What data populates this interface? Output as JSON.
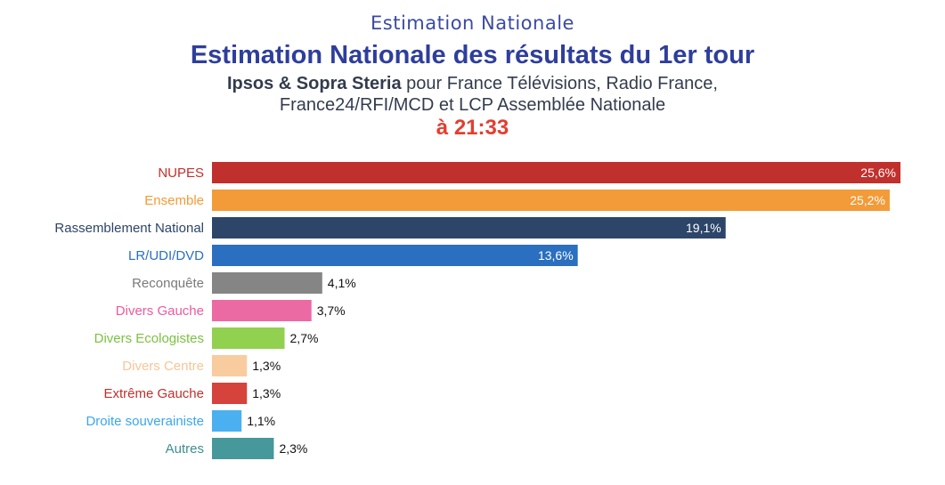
{
  "header": {
    "top_label": "Estimation Nationale",
    "title": "Estimation Nationale des résultats du 1er tour",
    "subtitle_strong": "Ipsos & Sopra Steria",
    "subtitle_rest_1": " pour France Télévisions, Radio France,",
    "subtitle_line_2": "France24/RFI/MCD et LCP Assemblée Nationale",
    "time": "à 21:33"
  },
  "chart_data": {
    "type": "bar",
    "orientation": "horizontal",
    "title": "Estimation Nationale des résultats du 1er tour",
    "xlabel": "",
    "ylabel": "",
    "xlim": [
      0,
      25.6
    ],
    "grid": false,
    "legend": "none",
    "categories": [
      "NUPES",
      "Ensemble",
      "Rassemblement National",
      "LR/UDI/DVD",
      "Reconquête",
      "Divers Gauche",
      "Divers Ecologistes",
      "Divers Centre",
      "Extrême Gauche",
      "Droite souverainiste",
      "Autres"
    ],
    "values": [
      25.6,
      25.2,
      19.1,
      13.6,
      4.1,
      3.7,
      2.7,
      1.3,
      1.3,
      1.1,
      2.3
    ],
    "value_labels": [
      "25,6%",
      "25,2%",
      "19,1%",
      "13,6%",
      "4,1%",
      "3,7%",
      "2,7%",
      "1,3%",
      "1,3%",
      "1,1%",
      "2,3%"
    ],
    "colors": [
      "#c0302c",
      "#f29b38",
      "#2d4569",
      "#2a6fc0",
      "#858585",
      "#ec6aa4",
      "#92d050",
      "#f9cc9f",
      "#d5433c",
      "#4bb0ef",
      "#46989a"
    ],
    "label_colors": [
      "#c0302c",
      "#f29b38",
      "#2d4569",
      "#2a6fc0",
      "#7a7a7a",
      "#ec5a9e",
      "#7cc142",
      "#f6c697",
      "#c0302c",
      "#3aa6ea",
      "#3f8e90"
    ],
    "value_label_inside_threshold": 10
  }
}
